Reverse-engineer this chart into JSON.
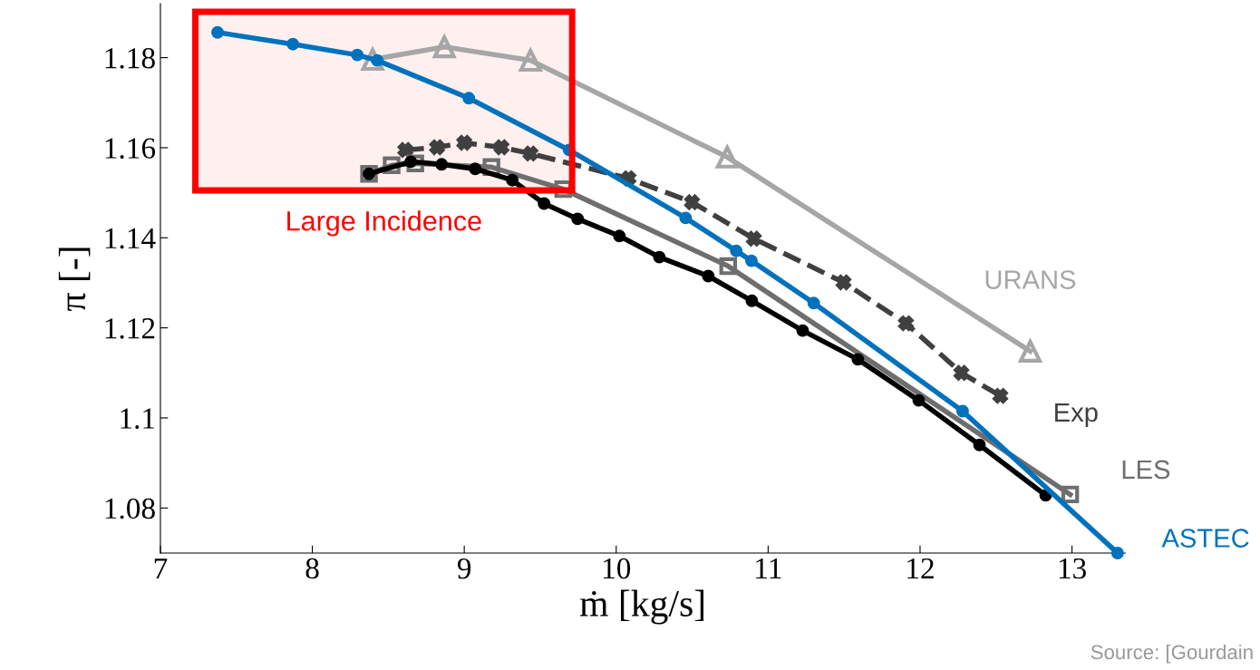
{
  "chart_data": {
    "type": "line",
    "xlabel": "ṁ [kg/s]",
    "ylabel": "π [-]",
    "xlim": [
      7,
      13.35
    ],
    "xticks": [
      7,
      8,
      9,
      10,
      11,
      12,
      13
    ],
    "ylim": [
      1.07,
      1.192
    ],
    "yticks": [
      1.08,
      1.1,
      1.12,
      1.14,
      1.16,
      1.18
    ],
    "grid": false,
    "legend": false,
    "series": [
      {
        "name": "URANS",
        "color": "#a6a6a6",
        "marker": "triangle",
        "x": [
          8.397,
          8.869,
          9.436,
          10.731,
          12.725
        ],
        "values": [
          1.1796,
          1.1824,
          1.1794,
          1.1579,
          1.1148
        ]
      },
      {
        "name": "Exp",
        "color": "#404040",
        "marker": "cross",
        "line_style": "dashed",
        "x": [
          8.612,
          8.821,
          9.0,
          9.245,
          9.436,
          10.081,
          10.499,
          10.906,
          11.496,
          11.907,
          12.272,
          12.528
        ],
        "values": [
          1.1595,
          1.1601,
          1.1611,
          1.1601,
          1.1587,
          1.1532,
          1.1479,
          1.1398,
          1.1301,
          1.121,
          1.11,
          1.1049
        ]
      },
      {
        "name": "LES",
        "color": "#6e6e6e",
        "marker": "square",
        "x": [
          8.373,
          8.522,
          8.678,
          9.179,
          9.651,
          10.737,
          12.988
        ],
        "values": [
          1.1542,
          1.1561,
          1.1565,
          1.1557,
          1.1508,
          1.1337,
          1.083
        ]
      },
      {
        "color": "#000000",
        "marker": "circle",
        "x": [
          8.373,
          8.648,
          8.851,
          9.072,
          9.316,
          9.525,
          9.746,
          10.021,
          10.284,
          10.606,
          10.893,
          11.227,
          11.591,
          11.991,
          12.391,
          12.827
        ],
        "values": [
          1.1542,
          1.1569,
          1.1563,
          1.1553,
          1.1528,
          1.1476,
          1.1442,
          1.1404,
          1.1357,
          1.1315,
          1.126,
          1.1194,
          1.113,
          1.1039,
          1.094,
          1.0828
        ]
      },
      {
        "name": "ASTEC",
        "color": "#0072bd",
        "marker": "circle",
        "x": [
          7.376,
          7.872,
          8.296,
          8.427,
          9.03,
          9.69,
          10.457,
          10.79,
          10.89,
          11.3,
          12.28,
          13.3
        ],
        "values": [
          1.1856,
          1.183,
          1.1806,
          1.1794,
          1.171,
          1.1595,
          1.1444,
          1.1371,
          1.1349,
          1.1255,
          1.1015,
          1.07
        ]
      }
    ],
    "bands": [
      {
        "axis": "x",
        "from": 7.23,
        "to": 9.71,
        "label": "Large Incidence",
        "color": "#ff0000"
      }
    ],
    "annotations": [
      "Source: [Gourdain"
    ]
  }
}
